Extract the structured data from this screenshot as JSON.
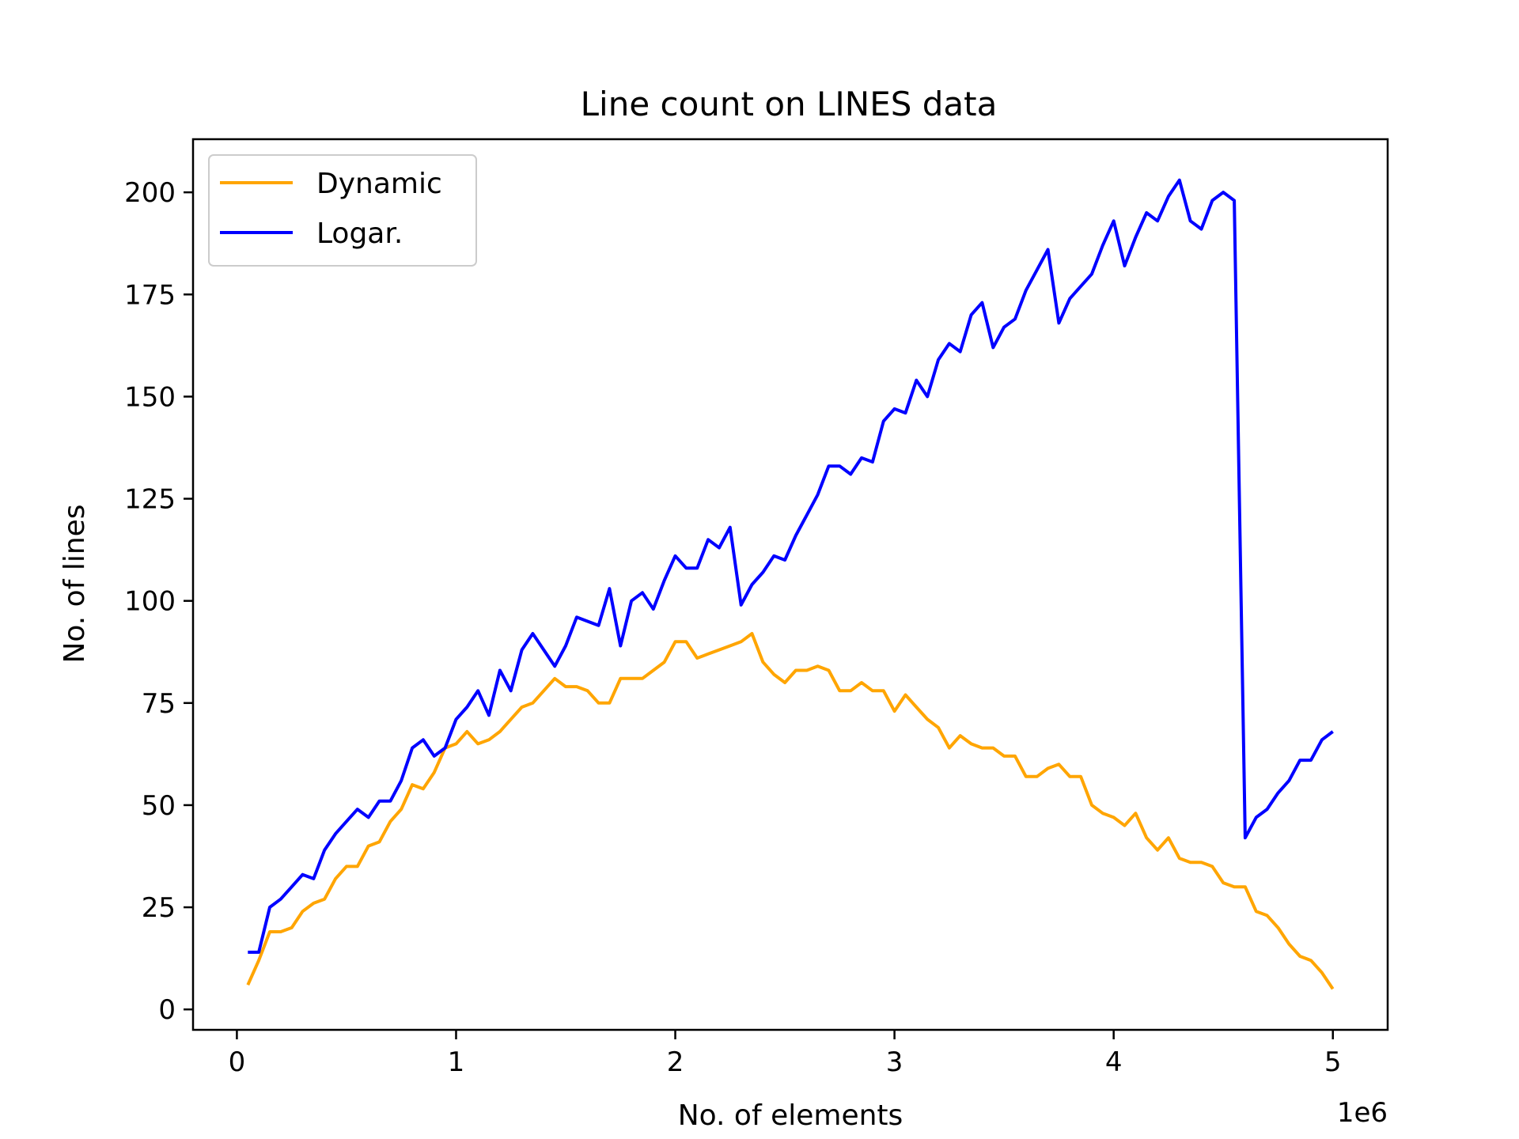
{
  "chart_data": {
    "type": "line",
    "title": "Line count on LINES data",
    "xlabel": "No. of elements",
    "ylabel": "No. of lines",
    "x_offset_text": "1e6",
    "xlim": [
      -0.2,
      5.25
    ],
    "ylim": [
      -5,
      213
    ],
    "x_ticks": [
      0,
      1,
      2,
      3,
      4,
      5
    ],
    "x_tick_labels": [
      "0",
      "1",
      "2",
      "3",
      "4",
      "5"
    ],
    "y_ticks": [
      0,
      25,
      50,
      75,
      100,
      125,
      150,
      175,
      200
    ],
    "y_tick_labels": [
      "0",
      "25",
      "50",
      "75",
      "100",
      "125",
      "150",
      "175",
      "200"
    ],
    "grid": false,
    "legend_position": "top-left",
    "x": [
      0.05,
      0.1,
      0.15,
      0.2,
      0.25,
      0.3,
      0.35,
      0.4,
      0.45,
      0.5,
      0.55,
      0.6,
      0.65,
      0.7,
      0.75,
      0.8,
      0.85,
      0.9,
      0.95,
      1.0,
      1.05,
      1.1,
      1.15,
      1.2,
      1.25,
      1.3,
      1.35,
      1.4,
      1.45,
      1.5,
      1.55,
      1.6,
      1.65,
      1.7,
      1.75,
      1.8,
      1.85,
      1.9,
      1.95,
      2.0,
      2.05,
      2.1,
      2.15,
      2.2,
      2.25,
      2.3,
      2.35,
      2.4,
      2.45,
      2.5,
      2.55,
      2.6,
      2.65,
      2.7,
      2.75,
      2.8,
      2.85,
      2.9,
      2.95,
      3.0,
      3.05,
      3.1,
      3.15,
      3.2,
      3.25,
      3.3,
      3.35,
      3.4,
      3.45,
      3.5,
      3.55,
      3.6,
      3.65,
      3.7,
      3.75,
      3.8,
      3.85,
      3.9,
      3.95,
      4.0,
      4.05,
      4.1,
      4.15,
      4.2,
      4.25,
      4.3,
      4.35,
      4.4,
      4.45,
      4.5,
      4.55,
      4.6,
      4.65,
      4.7,
      4.75,
      4.8,
      4.85,
      4.9,
      4.95,
      5.0
    ],
    "series": [
      {
        "name": "Dynamic",
        "color": "#ffa500",
        "values": [
          6,
          12,
          19,
          19,
          20,
          24,
          26,
          27,
          32,
          35,
          35,
          40,
          41,
          46,
          49,
          55,
          54,
          58,
          64,
          65,
          68,
          65,
          66,
          68,
          71,
          74,
          75,
          78,
          81,
          79,
          79,
          78,
          75,
          75,
          81,
          81,
          81,
          83,
          85,
          90,
          90,
          86,
          87,
          88,
          89,
          90,
          92,
          85,
          82,
          80,
          83,
          83,
          84,
          83,
          78,
          78,
          80,
          78,
          78,
          73,
          77,
          74,
          71,
          69,
          64,
          67,
          65,
          64,
          64,
          62,
          62,
          57,
          57,
          59,
          60,
          57,
          57,
          50,
          48,
          47,
          45,
          48,
          42,
          39,
          42,
          37,
          36,
          36,
          35,
          31,
          30,
          30,
          24,
          23,
          20,
          16,
          13,
          12,
          9,
          5
        ]
      },
      {
        "name": "Logar.",
        "color": "#0000ff",
        "values": [
          14,
          14,
          25,
          27,
          30,
          33,
          32,
          39,
          43,
          46,
          49,
          47,
          51,
          51,
          56,
          64,
          66,
          62,
          64,
          71,
          74,
          78,
          72,
          83,
          78,
          88,
          92,
          88,
          84,
          89,
          96,
          95,
          94,
          103,
          89,
          100,
          102,
          98,
          105,
          111,
          108,
          108,
          115,
          113,
          118,
          99,
          104,
          107,
          111,
          110,
          116,
          121,
          126,
          133,
          133,
          131,
          135,
          134,
          144,
          147,
          146,
          154,
          150,
          159,
          163,
          161,
          170,
          173,
          162,
          167,
          169,
          176,
          181,
          186,
          168,
          174,
          177,
          180,
          187,
          193,
          182,
          189,
          195,
          193,
          199,
          203,
          193,
          191,
          198,
          200,
          198,
          42,
          47,
          49,
          53,
          56,
          61,
          61,
          66,
          68
        ]
      }
    ]
  }
}
